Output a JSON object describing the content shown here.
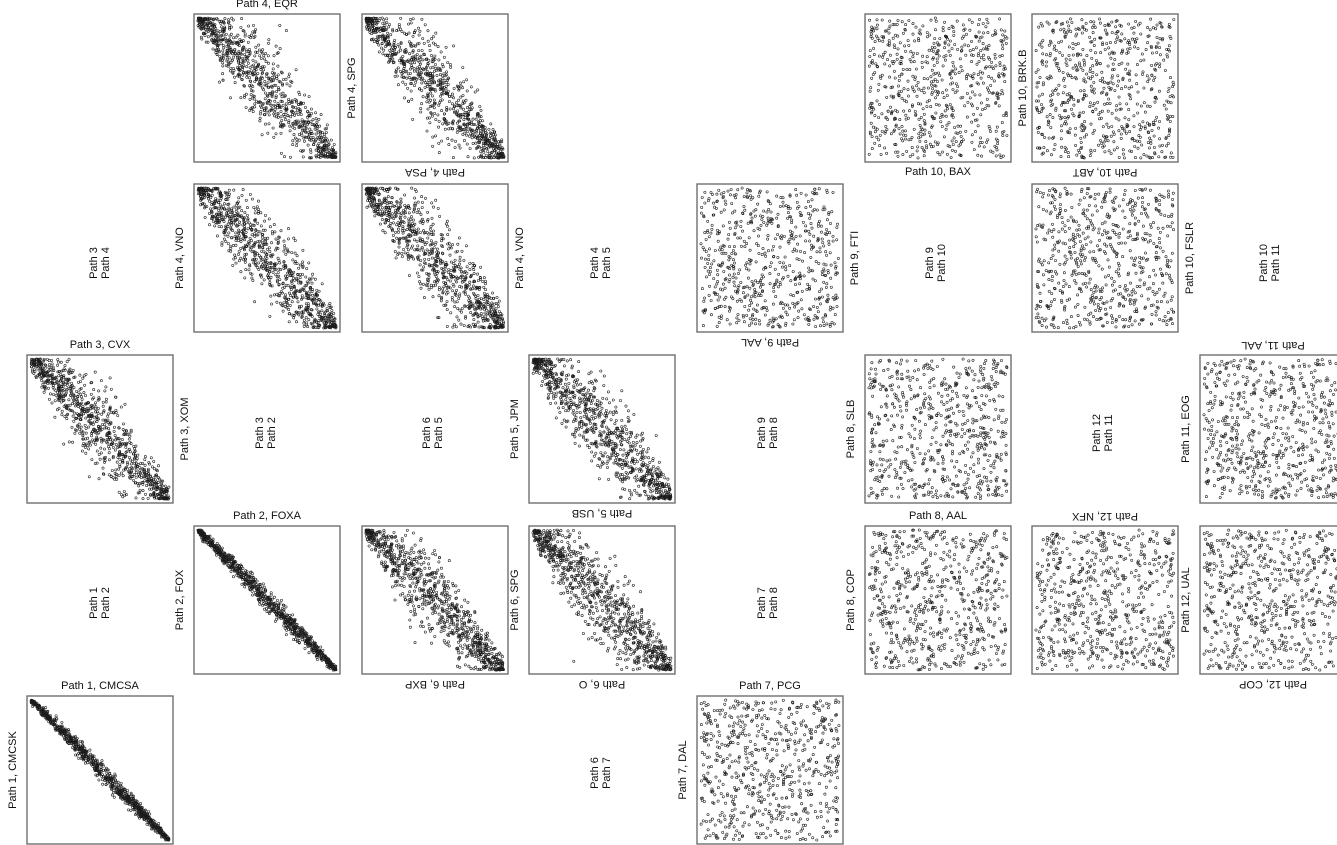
{
  "chart_data": {
    "type": "scatter",
    "note_points": "panels show dense point clouds; values approximate the visible trend (negative diagonal = strong dependence, uniform = independence)",
    "panels": [
      {
        "id": "p1",
        "top": "Path 1, CMCSA",
        "left": "Path 1, CMCSK",
        "right": "",
        "bottom": "",
        "pattern": "diagonal",
        "strength": 0.98
      },
      {
        "id": "p2",
        "top": "Path 2, FOXA",
        "left": "Path 2, FOX",
        "right": "",
        "bottom": "",
        "pattern": "diagonal",
        "strength": 0.97
      },
      {
        "id": "p3",
        "top": "Path 3, CVX",
        "left": "",
        "right": "Path 3, XOM",
        "bottom": "",
        "pattern": "diagonal",
        "strength": 0.82
      },
      {
        "id": "p4a",
        "top": "Path 4, EQR",
        "left": "",
        "right": "Path 4, SPG",
        "bottom": "",
        "pattern": "diagonal",
        "strength": 0.8
      },
      {
        "id": "p4b",
        "top": "",
        "left": "",
        "right": "",
        "bottom": "Path 4, PSA",
        "pattern": "diagonal",
        "strength": 0.8
      },
      {
        "id": "p4c",
        "top": "",
        "left": "Path 4, VNO",
        "right": "",
        "bottom": "",
        "pattern": "diagonal",
        "strength": 0.8
      },
      {
        "id": "p4d",
        "top": "",
        "left": "",
        "right": "Path 4, VNO",
        "bottom": "",
        "pattern": "diagonal",
        "strength": 0.78
      },
      {
        "id": "p6a",
        "top": "",
        "left": "",
        "right": "",
        "bottom": "Path 6, BXP",
        "pattern": "diagonal",
        "strength": 0.82
      },
      {
        "id": "p5",
        "top": "",
        "left": "Path 5, JPM",
        "right": "",
        "bottom": "Path 5, USB",
        "pattern": "diagonal",
        "strength": 0.8
      },
      {
        "id": "p6b",
        "top": "",
        "left": "Path 6, SPG",
        "right": "",
        "bottom": "Path 6, O",
        "pattern": "diagonal",
        "strength": 0.8
      },
      {
        "id": "p9",
        "top": "",
        "left": "",
        "right": "Path 9, FTI",
        "bottom": "Path 9, AAL",
        "pattern": "uniform",
        "strength": 0
      },
      {
        "id": "p7",
        "top": "Path 7, PCG",
        "left": "Path 7, DAL",
        "right": "",
        "bottom": "",
        "pattern": "uniform",
        "strength": 0
      },
      {
        "id": "p10a",
        "top": "",
        "left": "",
        "right": "Path 10, BRK.B",
        "bottom": "Path 10, BAX",
        "bottom_upright": true,
        "pattern": "uniform",
        "strength": 0
      },
      {
        "id": "p10b",
        "top": "",
        "left": "",
        "right": "",
        "bottom": "Path 10, ABT",
        "pattern": "uniform",
        "strength": 0
      },
      {
        "id": "p10c",
        "top": "",
        "left": "",
        "right": "Path 10, FSLR",
        "bottom": "",
        "pattern": "uniform",
        "strength": 0
      },
      {
        "id": "p8a",
        "top": "",
        "left": "Path 8, SLB",
        "right": "",
        "bottom": "",
        "pattern": "uniform",
        "strength": 0
      },
      {
        "id": "p8b",
        "top": "Path 8, AAL",
        "left": "Path 8, COP",
        "right": "",
        "bottom": "",
        "pattern": "uniform",
        "strength": 0
      },
      {
        "id": "p12a",
        "top": "",
        "left": "",
        "right": "",
        "bottom": "",
        "top_rotated": "Path 12, NFX",
        "pattern": "uniform",
        "strength": 0
      },
      {
        "id": "p11",
        "top": "",
        "left": "Path 11, EOG",
        "right": "",
        "bottom": "",
        "top_rotated": "Path 11, AAL",
        "pattern": "uniform",
        "strength": 0
      },
      {
        "id": "p12b",
        "top": "",
        "left": "Path 12, UAL",
        "right": "",
        "bottom": "Path 12, COP",
        "pattern": "uniform",
        "strength": 0
      }
    ],
    "path_pair_labels": [
      [
        "Path 3",
        "Path 4"
      ],
      [
        "Path 1",
        "Path 2"
      ],
      [
        "Path 3",
        "Path 2"
      ],
      [
        "Path 6",
        "Path 5"
      ],
      [
        "Path 4",
        "Path 5"
      ],
      [
        "Path 6",
        "Path 7"
      ],
      [
        "Path 9",
        "Path 8"
      ],
      [
        "Path 7",
        "Path 8"
      ],
      [
        "Path 9",
        "Path 10"
      ],
      [
        "Path 12",
        "Path 11"
      ],
      [
        "Path 10",
        "Path 11"
      ]
    ]
  }
}
